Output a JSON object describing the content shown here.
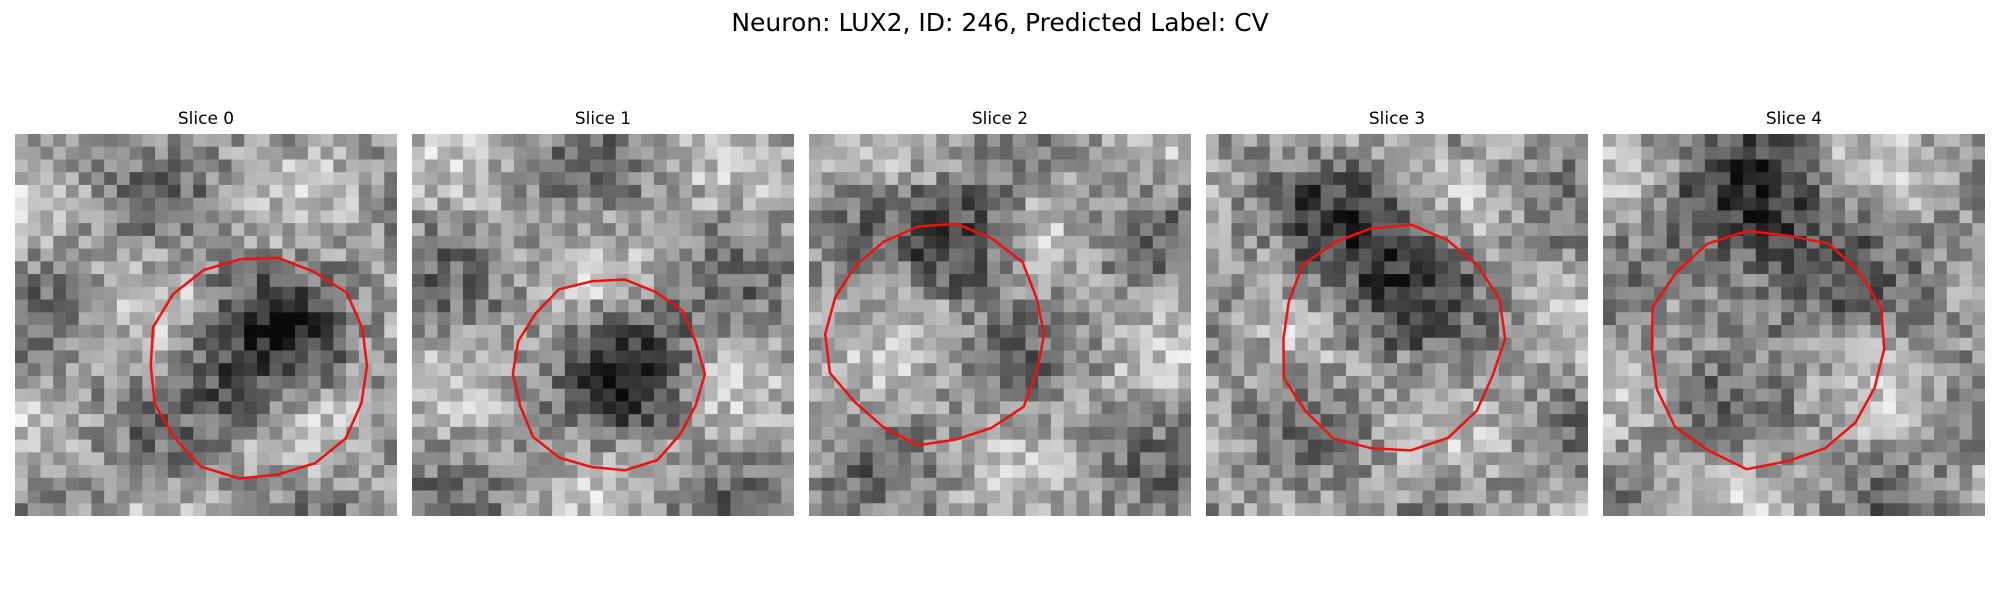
{
  "title": "Neuron: LUX2, ID: 246, Predicted Label: CV",
  "panels": [
    {
      "label": "Slice 0"
    },
    {
      "label": "Slice 1"
    },
    {
      "label": "Slice 2"
    },
    {
      "label": "Slice 3"
    },
    {
      "label": "Slice 4"
    }
  ],
  "colors": {
    "contour": "#ee1111",
    "background": "#ffffff"
  }
}
